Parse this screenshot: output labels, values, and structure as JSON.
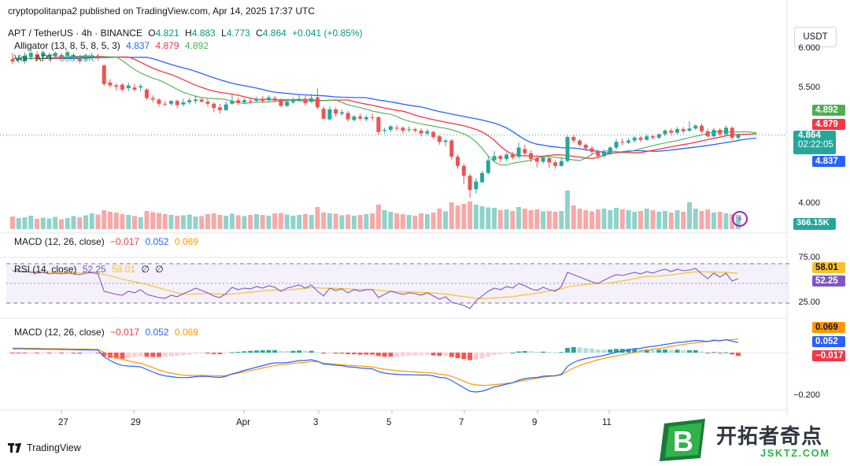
{
  "header": {
    "published": "cryptopolitanpa2 published on TradingView.com, Apr 14, 2025 17:37 UTC"
  },
  "symbol": {
    "title": "APT / TetherUS · 4h · BINANCE",
    "o_label": "O",
    "o": "4.821",
    "h_label": "H",
    "h": "4.883",
    "l_label": "L",
    "l": "4.773",
    "c_label": "C",
    "c": "4.864",
    "chg": "+0.041 (+0.85%)"
  },
  "alligator": {
    "label": "Alligator (13, 8, 5, 8, 5, 3)",
    "jaw": "4.837",
    "teeth": "4.879",
    "lips": "4.892"
  },
  "vol": {
    "label": "Vol · APT",
    "value": "366.15K"
  },
  "macd1": {
    "label": "MACD (12, 26, close)",
    "hist": "−0.017",
    "macd": "0.052",
    "signal": "0.069"
  },
  "rsi": {
    "label": "RSI (14, close)",
    "rsi": "52.25",
    "ma": "58.01",
    "x1": "∅",
    "x2": "∅"
  },
  "macd2": {
    "label": "MACD (12, 26, close)",
    "hist": "−0.017",
    "macd": "0.052",
    "signal": "0.069"
  },
  "currency_button": "USDT",
  "price_axis": {
    "labels": [
      "6.000",
      "5.500",
      "4.000"
    ],
    "lips": "4.892",
    "teeth": "4.879",
    "last": "4.864",
    "countdown": "02:22:05",
    "jaw": "4.837",
    "volume": "366.15K"
  },
  "rsi_axis": {
    "top": "75.00",
    "ma": "58.01",
    "rsi": "52.25",
    "bottom": "25.00"
  },
  "macd_axis": {
    "signal": "0.069",
    "macd": "0.052",
    "hist": "−0.017",
    "low": "−0.200"
  },
  "x_axis": {
    "labels": [
      "27",
      "29",
      "Apr",
      "3",
      "5",
      "7",
      "9",
      "11"
    ]
  },
  "footer": {
    "brand": "TradingView"
  },
  "watermark": {
    "cn": "开拓者奇点",
    "url": "JSKTZ.COM",
    "letter": "B"
  },
  "colors": {
    "up": "#26a69a",
    "down": "#ef5350",
    "jaw": "#2962ff",
    "teeth": "#f23645",
    "lips": "#4caf50",
    "rsi": "#7e57c2",
    "rsi_ma": "#fbc02d",
    "macd": "#2962ff",
    "signal": "#ff9800"
  },
  "chart_data": {
    "type": "candlestick",
    "price_range": [
      3.85,
      6.1
    ],
    "rsi_range": [
      0,
      100
    ],
    "macd_range": [
      -0.25,
      0.12
    ],
    "candles": [
      [
        5.93,
        5.9,
        6.02,
        5.86
      ],
      [
        5.92,
        5.95,
        5.99,
        5.88
      ],
      [
        5.91,
        5.98,
        6.03,
        5.87
      ],
      [
        5.96,
        6.02,
        6.05,
        5.93
      ],
      [
        6.0,
        5.94,
        6.04,
        5.9
      ],
      [
        5.97,
        6.03,
        6.06,
        5.94
      ],
      [
        5.94,
        5.99,
        6.02,
        5.91
      ],
      [
        5.97,
        6.02,
        6.04,
        5.94
      ],
      [
        5.99,
        5.96,
        6.02,
        5.92
      ],
      [
        5.98,
        6.03,
        6.06,
        5.95
      ],
      [
        5.95,
        5.99,
        6.01,
        5.92
      ],
      [
        5.95,
        5.91,
        5.97,
        5.87
      ],
      [
        5.93,
        5.96,
        6.01,
        5.9
      ],
      [
        5.96,
        5.98,
        6.02,
        5.92
      ],
      [
        5.98,
        5.96,
        6.01,
        5.91
      ],
      [
        5.84,
        5.58,
        5.86,
        5.55
      ],
      [
        5.6,
        5.56,
        5.65,
        5.53
      ],
      [
        5.56,
        5.54,
        5.59,
        5.49
      ],
      [
        5.57,
        5.5,
        5.59,
        5.47
      ],
      [
        5.52,
        5.56,
        5.6,
        5.48
      ],
      [
        5.53,
        5.5,
        5.58,
        5.47
      ],
      [
        5.53,
        5.55,
        5.58,
        5.48
      ],
      [
        5.5,
        5.38,
        5.52,
        5.35
      ],
      [
        5.38,
        5.36,
        5.42,
        5.32
      ],
      [
        5.36,
        5.3,
        5.38,
        5.26
      ],
      [
        5.3,
        5.29,
        5.34,
        5.26
      ],
      [
        5.3,
        5.34,
        5.35,
        5.27
      ],
      [
        5.34,
        5.28,
        5.36,
        5.24
      ],
      [
        5.29,
        5.32,
        5.37,
        5.26
      ],
      [
        5.32,
        5.35,
        5.38,
        5.29
      ],
      [
        5.34,
        5.36,
        5.42,
        5.3
      ],
      [
        5.36,
        5.33,
        5.39,
        5.31
      ],
      [
        5.33,
        5.3,
        5.37,
        5.26
      ],
      [
        5.3,
        5.24,
        5.32,
        5.18
      ],
      [
        5.25,
        5.21,
        5.3,
        5.16
      ],
      [
        5.21,
        5.29,
        5.33,
        5.2
      ],
      [
        5.3,
        5.34,
        5.43,
        5.29
      ],
      [
        5.35,
        5.31,
        5.39,
        5.28
      ],
      [
        5.32,
        5.35,
        5.38,
        5.3
      ],
      [
        5.34,
        5.33,
        5.39,
        5.29
      ],
      [
        5.34,
        5.37,
        5.4,
        5.32
      ],
      [
        5.37,
        5.34,
        5.41,
        5.31
      ],
      [
        5.35,
        5.39,
        5.42,
        5.33
      ],
      [
        5.38,
        5.35,
        5.41,
        5.32
      ],
      [
        5.35,
        5.27,
        5.38,
        5.25
      ],
      [
        5.27,
        5.33,
        5.35,
        5.25
      ],
      [
        5.32,
        5.34,
        5.39,
        5.3
      ],
      [
        5.34,
        5.37,
        5.42,
        5.33
      ],
      [
        5.37,
        5.31,
        5.41,
        5.28
      ],
      [
        5.33,
        5.38,
        5.44,
        5.31
      ],
      [
        5.39,
        5.25,
        5.52,
        5.22
      ],
      [
        5.23,
        5.09,
        5.26,
        5.07
      ],
      [
        5.08,
        5.22,
        5.26,
        5.06
      ],
      [
        5.22,
        5.16,
        5.25,
        5.12
      ],
      [
        5.16,
        5.18,
        5.22,
        5.13
      ],
      [
        5.17,
        5.08,
        5.2,
        5.05
      ],
      [
        5.07,
        5.12,
        5.14,
        5.05
      ],
      [
        5.12,
        5.09,
        5.16,
        5.06
      ],
      [
        5.08,
        5.11,
        5.14,
        5.05
      ],
      [
        5.11,
        5.1,
        5.16,
        5.06
      ],
      [
        5.11,
        4.9,
        5.12,
        4.86
      ],
      [
        4.92,
        4.93,
        4.96,
        4.88
      ],
      [
        4.93,
        4.98,
        5.0,
        4.9
      ],
      [
        4.96,
        4.95,
        5.0,
        4.92
      ],
      [
        4.96,
        4.92,
        4.98,
        4.88
      ],
      [
        4.93,
        4.94,
        4.98,
        4.9
      ],
      [
        4.94,
        4.92,
        4.96,
        4.89
      ],
      [
        4.92,
        4.88,
        4.95,
        4.84
      ],
      [
        4.88,
        4.91,
        4.94,
        4.85
      ],
      [
        4.9,
        4.83,
        4.92,
        4.8
      ],
      [
        4.84,
        4.76,
        4.86,
        4.72
      ],
      [
        4.76,
        4.78,
        4.8,
        4.7
      ],
      [
        4.78,
        4.55,
        4.8,
        4.51
      ],
      [
        4.55,
        4.42,
        4.58,
        4.38
      ],
      [
        4.42,
        4.28,
        4.45,
        4.16
      ],
      [
        4.28,
        4.08,
        4.31,
        3.97
      ],
      [
        4.09,
        4.2,
        4.25,
        4.03
      ],
      [
        4.19,
        4.32,
        4.35,
        4.18
      ],
      [
        4.32,
        4.5,
        4.55,
        4.3
      ],
      [
        4.5,
        4.56,
        4.63,
        4.48
      ],
      [
        4.56,
        4.52,
        4.58,
        4.47
      ],
      [
        4.52,
        4.58,
        4.61,
        4.49
      ],
      [
        4.58,
        4.54,
        4.62,
        4.51
      ],
      [
        4.55,
        4.68,
        4.75,
        4.52
      ],
      [
        4.66,
        4.6,
        4.72,
        4.57
      ],
      [
        4.6,
        4.52,
        4.64,
        4.47
      ],
      [
        4.53,
        4.48,
        4.57,
        4.4
      ],
      [
        4.48,
        4.54,
        4.57,
        4.45
      ],
      [
        4.53,
        4.47,
        4.55,
        4.39
      ],
      [
        4.47,
        4.42,
        4.5,
        4.38
      ],
      [
        4.42,
        4.49,
        4.53,
        4.41
      ],
      [
        4.49,
        4.83,
        4.85,
        4.47
      ],
      [
        4.83,
        4.78,
        4.86,
        4.75
      ],
      [
        4.78,
        4.72,
        4.8,
        4.69
      ],
      [
        4.72,
        4.67,
        4.74,
        4.63
      ],
      [
        4.67,
        4.62,
        4.7,
        4.58
      ],
      [
        4.62,
        4.56,
        4.65,
        4.52
      ],
      [
        4.56,
        4.61,
        4.65,
        4.53
      ],
      [
        4.6,
        4.68,
        4.7,
        4.57
      ],
      [
        4.68,
        4.76,
        4.8,
        4.65
      ],
      [
        4.76,
        4.75,
        4.81,
        4.71
      ],
      [
        4.75,
        4.78,
        4.81,
        4.73
      ],
      [
        4.78,
        4.82,
        4.84,
        4.75
      ],
      [
        4.82,
        4.79,
        4.85,
        4.76
      ],
      [
        4.79,
        4.84,
        4.87,
        4.78
      ],
      [
        4.84,
        4.82,
        4.86,
        4.79
      ],
      [
        4.82,
        4.87,
        4.88,
        4.8
      ],
      [
        4.87,
        4.92,
        4.94,
        4.84
      ],
      [
        4.92,
        4.89,
        4.95,
        4.85
      ],
      [
        4.89,
        4.94,
        4.97,
        4.87
      ],
      [
        4.94,
        4.91,
        4.97,
        4.88
      ],
      [
        4.92,
        4.95,
        5.05,
        4.9
      ],
      [
        4.95,
        4.99,
        5.01,
        4.93
      ],
      [
        4.99,
        4.91,
        5.02,
        4.88
      ],
      [
        4.91,
        4.84,
        4.95,
        4.82
      ],
      [
        4.84,
        4.93,
        4.96,
        4.82
      ],
      [
        4.93,
        4.87,
        4.95,
        4.84
      ],
      [
        4.87,
        4.96,
        4.99,
        4.85
      ],
      [
        4.96,
        4.82,
        4.98,
        4.79
      ],
      [
        4.82,
        4.86,
        4.88,
        4.77
      ]
    ],
    "volume": [
      32,
      28,
      30,
      34,
      26,
      29,
      27,
      31,
      25,
      28,
      33,
      30,
      35,
      40,
      37,
      48,
      44,
      42,
      38,
      36,
      33,
      30,
      46,
      43,
      41,
      38,
      36,
      34,
      35,
      37,
      32,
      33,
      38,
      40,
      36,
      34,
      39,
      35,
      33,
      36,
      38,
      36,
      34,
      40,
      41,
      37,
      34,
      36,
      38,
      36,
      56,
      42,
      40,
      39,
      35,
      37,
      34,
      36,
      38,
      40,
      62,
      48,
      44,
      40,
      38,
      36,
      34,
      40,
      38,
      42,
      52,
      45,
      68,
      60,
      64,
      70,
      62,
      58,
      55,
      54,
      48,
      50,
      46,
      56,
      52,
      48,
      50,
      45,
      46,
      44,
      46,
      98,
      60,
      52,
      48,
      45,
      50,
      52,
      48,
      54,
      50,
      48,
      44,
      46,
      52,
      48,
      44,
      46,
      42,
      48,
      44,
      68,
      52,
      46,
      50,
      42,
      44,
      40,
      38,
      36
    ],
    "rsi": [
      66,
      65,
      65,
      64,
      63,
      64,
      62,
      63,
      62,
      63,
      62,
      61,
      63,
      64,
      62,
      40,
      38,
      36,
      35,
      40,
      38,
      42,
      36,
      34,
      32,
      31,
      35,
      33,
      37,
      40,
      44,
      41,
      38,
      34,
      32,
      37,
      45,
      42,
      44,
      43,
      46,
      44,
      47,
      45,
      40,
      44,
      46,
      48,
      44,
      48,
      40,
      34,
      44,
      41,
      43,
      38,
      42,
      40,
      42,
      42,
      32,
      36,
      40,
      38,
      36,
      38,
      37,
      35,
      38,
      34,
      30,
      33,
      26,
      24,
      22,
      18,
      28,
      34,
      40,
      44,
      42,
      46,
      44,
      50,
      47,
      43,
      41,
      45,
      42,
      40,
      46,
      64,
      61,
      58,
      55,
      52,
      50,
      54,
      58,
      61,
      60,
      62,
      64,
      62,
      65,
      63,
      66,
      68,
      65,
      68,
      66,
      67,
      69,
      62,
      56,
      63,
      58,
      63,
      53,
      56
    ],
    "macd_hist": [
      -0.003,
      -0.004,
      -0.004,
      -0.003,
      -0.004,
      -0.003,
      -0.004,
      -0.003,
      -0.004,
      -0.003,
      -0.004,
      -0.005,
      -0.004,
      -0.003,
      -0.004,
      -0.018,
      -0.026,
      -0.03,
      -0.031,
      -0.026,
      -0.022,
      -0.018,
      -0.02,
      -0.022,
      -0.022,
      -0.021,
      -0.018,
      -0.016,
      -0.013,
      -0.01,
      -0.006,
      -0.004,
      -0.005,
      -0.007,
      -0.008,
      -0.004,
      0.002,
      0.004,
      0.007,
      0.009,
      0.011,
      0.012,
      0.013,
      0.013,
      0.009,
      0.008,
      0.009,
      0.011,
      0.009,
      0.009,
      0.002,
      -0.005,
      -0.004,
      -0.005,
      -0.005,
      -0.008,
      -0.008,
      -0.01,
      -0.01,
      -0.01,
      -0.017,
      -0.02,
      -0.02,
      -0.019,
      -0.018,
      -0.016,
      -0.015,
      -0.014,
      -0.012,
      -0.014,
      -0.017,
      -0.016,
      -0.022,
      -0.028,
      -0.033,
      -0.038,
      -0.036,
      -0.03,
      -0.02,
      -0.012,
      -0.008,
      -0.004,
      0.0,
      0.006,
      0.008,
      0.007,
      0.004,
      0.005,
      0.003,
      0.001,
      0.003,
      0.024,
      0.028,
      0.027,
      0.024,
      0.021,
      0.016,
      0.015,
      0.016,
      0.019,
      0.019,
      0.019,
      0.019,
      0.016,
      0.016,
      0.014,
      0.015,
      0.016,
      0.014,
      0.015,
      0.012,
      0.012,
      0.012,
      0.006,
      -0.002,
      0.003,
      -0.002,
      0.002,
      -0.009,
      -0.017
    ],
    "macd_line": [
      0.02,
      0.02,
      0.019,
      0.019,
      0.018,
      0.018,
      0.017,
      0.017,
      0.016,
      0.016,
      0.015,
      0.014,
      0.014,
      0.014,
      0.013,
      -0.02,
      -0.04,
      -0.055,
      -0.065,
      -0.068,
      -0.07,
      -0.072,
      -0.085,
      -0.098,
      -0.11,
      -0.118,
      -0.122,
      -0.126,
      -0.127,
      -0.126,
      -0.122,
      -0.12,
      -0.121,
      -0.124,
      -0.126,
      -0.12,
      -0.108,
      -0.1,
      -0.09,
      -0.082,
      -0.074,
      -0.066,
      -0.058,
      -0.052,
      -0.052,
      -0.05,
      -0.046,
      -0.04,
      -0.04,
      -0.036,
      -0.044,
      -0.058,
      -0.06,
      -0.064,
      -0.066,
      -0.072,
      -0.074,
      -0.078,
      -0.08,
      -0.082,
      -0.096,
      -0.104,
      -0.108,
      -0.11,
      -0.112,
      -0.112,
      -0.113,
      -0.114,
      -0.113,
      -0.118,
      -0.126,
      -0.128,
      -0.142,
      -0.16,
      -0.178,
      -0.196,
      -0.2,
      -0.196,
      -0.186,
      -0.174,
      -0.168,
      -0.16,
      -0.153,
      -0.14,
      -0.132,
      -0.128,
      -0.126,
      -0.12,
      -0.118,
      -0.117,
      -0.11,
      -0.07,
      -0.05,
      -0.038,
      -0.03,
      -0.024,
      -0.02,
      -0.014,
      -0.006,
      0.002,
      0.008,
      0.014,
      0.02,
      0.022,
      0.028,
      0.032,
      0.036,
      0.042,
      0.046,
      0.052,
      0.054,
      0.058,
      0.062,
      0.06,
      0.056,
      0.064,
      0.06,
      0.066,
      0.058,
      0.052
    ],
    "signal_line": [
      0.023,
      0.023,
      0.023,
      0.022,
      0.022,
      0.021,
      0.021,
      0.02,
      0.02,
      0.019,
      0.019,
      0.019,
      0.018,
      0.017,
      0.017,
      0.002,
      -0.014,
      -0.025,
      -0.034,
      -0.042,
      -0.048,
      -0.054,
      -0.065,
      -0.076,
      -0.088,
      -0.097,
      -0.104,
      -0.11,
      -0.114,
      -0.116,
      -0.116,
      -0.116,
      -0.116,
      -0.117,
      -0.118,
      -0.116,
      -0.11,
      -0.104,
      -0.097,
      -0.091,
      -0.085,
      -0.078,
      -0.071,
      -0.065,
      -0.061,
      -0.058,
      -0.055,
      -0.051,
      -0.049,
      -0.045,
      -0.046,
      -0.053,
      -0.056,
      -0.059,
      -0.061,
      -0.064,
      -0.066,
      -0.068,
      -0.07,
      -0.072,
      -0.079,
      -0.084,
      -0.088,
      -0.091,
      -0.094,
      -0.096,
      -0.098,
      -0.1,
      -0.101,
      -0.104,
      -0.109,
      -0.112,
      -0.12,
      -0.132,
      -0.145,
      -0.158,
      -0.164,
      -0.166,
      -0.166,
      -0.162,
      -0.16,
      -0.156,
      -0.153,
      -0.146,
      -0.14,
      -0.135,
      -0.13,
      -0.125,
      -0.121,
      -0.118,
      -0.113,
      -0.094,
      -0.078,
      -0.065,
      -0.054,
      -0.045,
      -0.036,
      -0.029,
      -0.022,
      -0.017,
      -0.011,
      -0.005,
      0.001,
      0.006,
      0.012,
      0.018,
      0.021,
      0.026,
      0.032,
      0.037,
      0.042,
      0.046,
      0.05,
      0.054,
      0.058,
      0.061,
      0.062,
      0.064,
      0.067,
      0.069
    ]
  }
}
